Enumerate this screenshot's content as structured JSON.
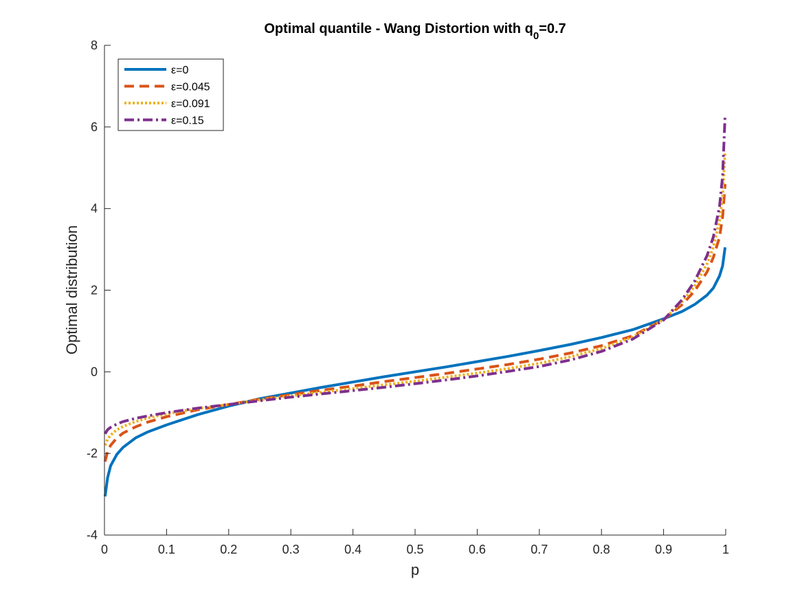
{
  "chart_data": {
    "type": "line",
    "title": {
      "prefix": "Optimal quantile - Wang Distortion with q",
      "subscript": "0",
      "suffix": "=0.7"
    },
    "xlabel": "p",
    "ylabel": "Optimal distribution",
    "xlim": [
      0,
      1
    ],
    "ylim": [
      -4,
      8
    ],
    "xticks": [
      0,
      0.1,
      0.2,
      0.3,
      0.4,
      0.5,
      0.6,
      0.7,
      0.8,
      0.9,
      1
    ],
    "xtick_labels": [
      "0",
      "0.1",
      "0.2",
      "0.3",
      "0.4",
      "0.5",
      "0.6",
      "0.7",
      "0.8",
      "0.9",
      "1"
    ],
    "yticks": [
      -4,
      -2,
      0,
      2,
      4,
      6,
      8
    ],
    "ytick_labels": [
      "-4",
      "-2",
      "0",
      "2",
      "4",
      "6",
      "8"
    ],
    "legend_position": "top-left",
    "series": [
      {
        "name": "ε=0",
        "color": "#0072BD",
        "style": "solid",
        "x": [
          0.001,
          0.005,
          0.01,
          0.02,
          0.03,
          0.05,
          0.07,
          0.1,
          0.15,
          0.2,
          0.25,
          0.3,
          0.35,
          0.4,
          0.45,
          0.5,
          0.55,
          0.6,
          0.65,
          0.7,
          0.75,
          0.8,
          0.85,
          0.9,
          0.93,
          0.95,
          0.97,
          0.98,
          0.99,
          0.995,
          0.999
        ],
        "y": [
          -3.05,
          -2.6,
          -2.3,
          -2.02,
          -1.85,
          -1.62,
          -1.47,
          -1.3,
          -1.05,
          -0.84,
          -0.66,
          -0.52,
          -0.38,
          -0.25,
          -0.12,
          0.0,
          0.12,
          0.25,
          0.38,
          0.52,
          0.67,
          0.84,
          1.03,
          1.3,
          1.48,
          1.65,
          1.88,
          2.05,
          2.35,
          2.6,
          3.05
        ]
      },
      {
        "name": "ε=0.045",
        "color": "#D95319",
        "style": "dashed",
        "x": [
          0.001,
          0.005,
          0.01,
          0.02,
          0.03,
          0.05,
          0.07,
          0.1,
          0.15,
          0.2,
          0.25,
          0.3,
          0.35,
          0.4,
          0.45,
          0.5,
          0.55,
          0.6,
          0.65,
          0.7,
          0.75,
          0.8,
          0.85,
          0.9,
          0.93,
          0.95,
          0.97,
          0.98,
          0.99,
          0.995,
          0.999
        ],
        "y": [
          -2.2,
          -1.95,
          -1.8,
          -1.62,
          -1.5,
          -1.35,
          -1.23,
          -1.1,
          -0.93,
          -0.8,
          -0.67,
          -0.56,
          -0.45,
          -0.35,
          -0.24,
          -0.14,
          -0.04,
          0.07,
          0.18,
          0.31,
          0.46,
          0.64,
          0.88,
          1.28,
          1.65,
          1.98,
          2.45,
          2.8,
          3.3,
          3.8,
          4.6
        ]
      },
      {
        "name": "ε=0.091",
        "color": "#EDB120",
        "style": "dotted",
        "x": [
          0.001,
          0.005,
          0.01,
          0.02,
          0.03,
          0.05,
          0.07,
          0.1,
          0.15,
          0.2,
          0.25,
          0.3,
          0.35,
          0.4,
          0.45,
          0.5,
          0.55,
          0.6,
          0.65,
          0.7,
          0.75,
          0.8,
          0.85,
          0.9,
          0.93,
          0.95,
          0.97,
          0.98,
          0.99,
          0.995,
          0.999
        ],
        "y": [
          -1.8,
          -1.65,
          -1.55,
          -1.42,
          -1.34,
          -1.22,
          -1.13,
          -1.03,
          -0.9,
          -0.8,
          -0.69,
          -0.59,
          -0.5,
          -0.41,
          -0.32,
          -0.23,
          -0.13,
          -0.03,
          0.08,
          0.21,
          0.37,
          0.57,
          0.85,
          1.28,
          1.72,
          2.1,
          2.65,
          3.05,
          3.7,
          4.3,
          5.4
        ]
      },
      {
        "name": "ε=0.15",
        "color": "#7E2F8E",
        "style": "dashdot",
        "x": [
          0.001,
          0.005,
          0.01,
          0.02,
          0.03,
          0.05,
          0.07,
          0.1,
          0.15,
          0.2,
          0.25,
          0.3,
          0.35,
          0.4,
          0.45,
          0.5,
          0.55,
          0.6,
          0.65,
          0.7,
          0.75,
          0.8,
          0.85,
          0.9,
          0.93,
          0.95,
          0.97,
          0.98,
          0.99,
          0.995,
          0.999
        ],
        "y": [
          -1.52,
          -1.42,
          -1.36,
          -1.28,
          -1.22,
          -1.14,
          -1.08,
          -1.0,
          -0.89,
          -0.8,
          -0.71,
          -0.62,
          -0.54,
          -0.46,
          -0.38,
          -0.29,
          -0.2,
          -0.1,
          0.01,
          0.13,
          0.29,
          0.5,
          0.8,
          1.27,
          1.77,
          2.22,
          2.85,
          3.3,
          4.05,
          4.8,
          6.3
        ]
      }
    ]
  }
}
